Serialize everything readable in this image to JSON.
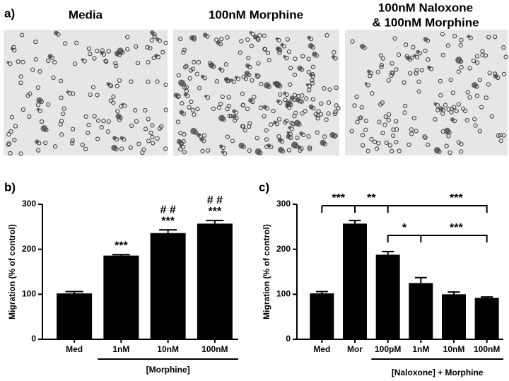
{
  "panel_a": {
    "label": "a)",
    "titles": [
      "Media",
      "100nM Morphine",
      [
        "100nM Naloxone",
        "& 100nM Morphine"
      ]
    ]
  },
  "chart_data": [
    {
      "type": "bar",
      "panel": "b)",
      "ylabel": "Migration (% of control)",
      "categories": [
        "Med",
        "1nM",
        "10nM",
        "100nM"
      ],
      "values": [
        102,
        186,
        236,
        257
      ],
      "errors": [
        4,
        2,
        7,
        7
      ],
      "color": "#000000",
      "ylim": [
        0,
        300
      ],
      "yticks": [
        0,
        100,
        200,
        300
      ],
      "group_label": {
        "text": "[Morphine]",
        "from": "1nM",
        "to": "100nM"
      },
      "annotations": [
        {
          "text": "***",
          "category": "1nM"
        },
        {
          "text": "***",
          "category": "10nM"
        },
        {
          "text": "***",
          "category": "100nM"
        },
        {
          "text": "# #",
          "category": "10nM"
        },
        {
          "text": "# #",
          "category": "100nM"
        }
      ]
    },
    {
      "type": "bar",
      "panel": "c)",
      "ylabel": "Migration (% of control)",
      "categories": [
        "Med",
        "Mor",
        "100pM",
        "1nM",
        "10nM",
        "100nM"
      ],
      "values": [
        102,
        257,
        188,
        125,
        100,
        92
      ],
      "errors": [
        4,
        7,
        7,
        12,
        5,
        2
      ],
      "color": "#000000",
      "ylim": [
        0,
        300
      ],
      "yticks": [
        0,
        100,
        200,
        300
      ],
      "group_label": {
        "text": "[Naloxone] + Morphine",
        "from": "100pM",
        "to": "100nM"
      },
      "brackets": [
        {
          "text": "***",
          "from": "Med",
          "to": "Mor"
        },
        {
          "text": "**",
          "from": "Mor",
          "to": "100pM"
        },
        {
          "text": "***",
          "from": "Mor",
          "to": "100nM"
        },
        {
          "text": "*",
          "from": "100pM",
          "to": "1nM"
        },
        {
          "text": "***",
          "from": "100pM",
          "to": "100nM"
        }
      ]
    }
  ]
}
